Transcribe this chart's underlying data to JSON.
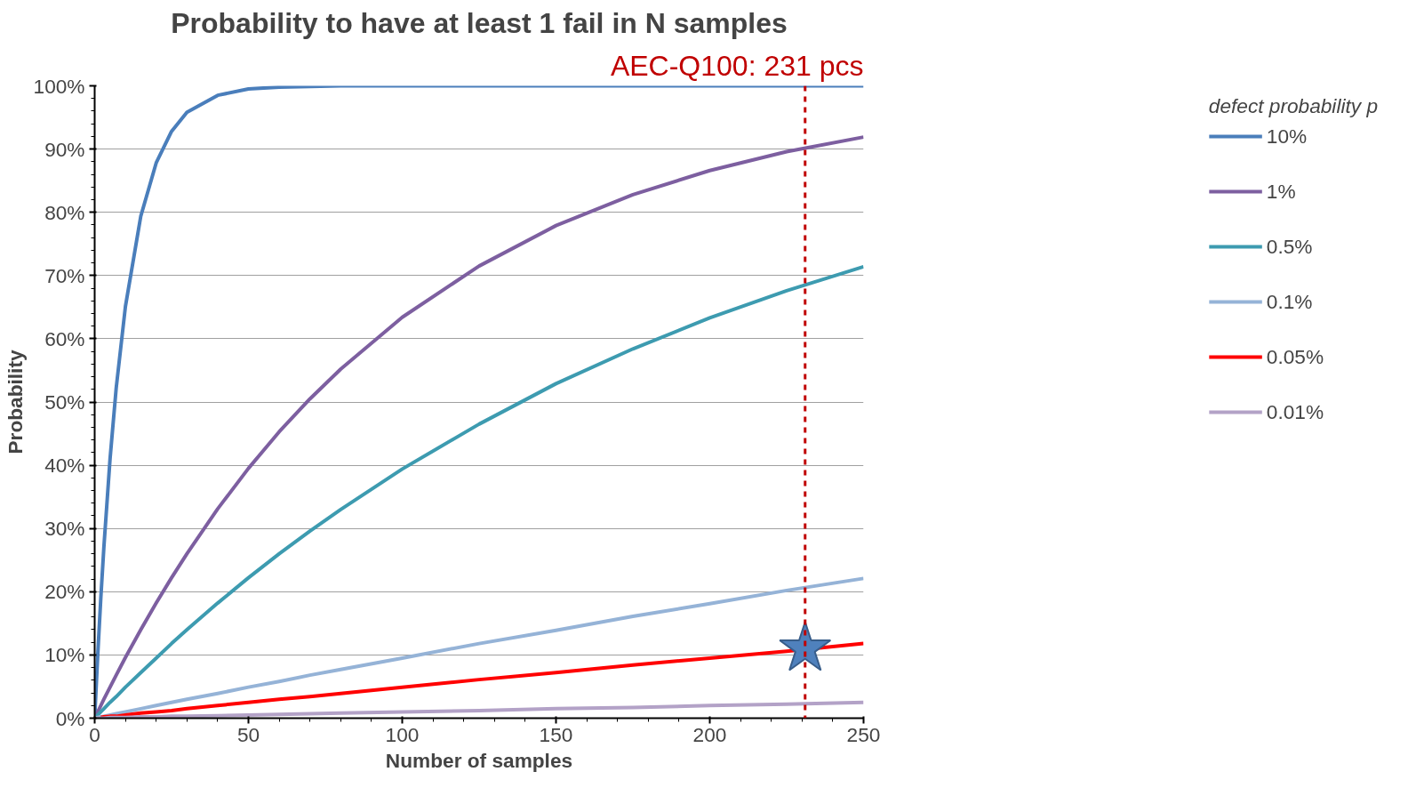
{
  "chart_data": {
    "type": "line",
    "title": "Probability to have at least 1 fail in N samples",
    "xlabel": "Number of samples",
    "ylabel": "Probability",
    "legend_title": "defect probability p",
    "x": [
      0,
      1,
      2,
      3,
      5,
      7,
      10,
      15,
      20,
      25,
      30,
      40,
      50,
      60,
      70,
      80,
      100,
      125,
      150,
      175,
      200,
      225,
      250
    ],
    "series": [
      {
        "name": "10%",
        "color": "#4a7ebb",
        "values": [
          0,
          10,
          19,
          27.1,
          41,
          52.2,
          65.1,
          79.4,
          87.8,
          92.8,
          95.8,
          98.5,
          99.5,
          99.8,
          99.9,
          100,
          100,
          100,
          100,
          100,
          100,
          100,
          100
        ]
      },
      {
        "name": "1%",
        "color": "#7d5fa0",
        "values": [
          0,
          1,
          2,
          3,
          4.9,
          6.8,
          9.6,
          14,
          18.2,
          22.2,
          26,
          33.1,
          39.5,
          45.3,
          50.5,
          55.2,
          63.4,
          71.5,
          77.9,
          82.8,
          86.6,
          89.6,
          91.9
        ]
      },
      {
        "name": "0.5%",
        "color": "#3d9bb0",
        "values": [
          0,
          0.5,
          1,
          1.5,
          2.5,
          3.4,
          4.9,
          7.2,
          9.5,
          11.8,
          14,
          18.2,
          22.2,
          26,
          29.6,
          33,
          39.4,
          46.5,
          52.9,
          58.4,
          63.3,
          67.6,
          71.4
        ]
      },
      {
        "name": "0.1%",
        "color": "#95b3d7",
        "values": [
          0,
          0.1,
          0.2,
          0.3,
          0.5,
          0.7,
          1,
          1.5,
          2,
          2.5,
          3,
          3.9,
          4.9,
          5.8,
          6.8,
          7.7,
          9.5,
          11.8,
          13.9,
          16.1,
          18.1,
          20.2,
          22.1
        ]
      },
      {
        "name": "0.05%",
        "color": "#ff0000",
        "x": [
          2,
          3,
          5,
          7,
          10,
          15,
          20,
          25,
          30,
          40,
          50,
          60,
          70,
          80,
          100,
          125,
          150,
          175,
          200,
          225,
          250
        ],
        "values": [
          0.1,
          0.2,
          0.3,
          0.3,
          0.5,
          0.8,
          1,
          1.2,
          1.5,
          2,
          2.5,
          3,
          3.4,
          3.9,
          4.9,
          6.1,
          7.2,
          8.4,
          9.5,
          10.6,
          11.8
        ]
      },
      {
        "name": "0.01%",
        "color": "#b3a2c7",
        "values": [
          0,
          0,
          0,
          0,
          0.1,
          0.1,
          0.1,
          0.2,
          0.2,
          0.3,
          0.3,
          0.4,
          0.5,
          0.6,
          0.7,
          0.8,
          1,
          1.2,
          1.5,
          1.7,
          2,
          2.2,
          2.5
        ]
      },
      {
        "type": "scatter",
        "marker": "star",
        "color": "#4f81bd",
        "x": [
          231
        ],
        "values": [
          11
        ]
      }
    ],
    "xlim": [
      0,
      250
    ],
    "xticks": [
      0,
      50,
      100,
      150,
      200,
      250
    ],
    "ylim": [
      0,
      100
    ],
    "yticks": [
      {
        "value": 0,
        "label": "0%"
      },
      {
        "value": 10,
        "label": "10%"
      },
      {
        "value": 20,
        "label": "20%"
      },
      {
        "value": 30,
        "label": "30%"
      },
      {
        "value": 40,
        "label": "40%"
      },
      {
        "value": 50,
        "label": "50%"
      },
      {
        "value": 60,
        "label": "60%"
      },
      {
        "value": 70,
        "label": "70%"
      },
      {
        "value": 80,
        "label": "80%"
      },
      {
        "value": 90,
        "label": "90%"
      },
      {
        "value": 100,
        "label": "100%"
      }
    ],
    "ref_lines": [
      {
        "axis": "x",
        "value": 231,
        "label": "AEC-Q100: 231 pcs",
        "color": "#c00000",
        "line_style": "dashed"
      }
    ],
    "grid": "y",
    "legend": "right",
    "line_style": "solid"
  }
}
